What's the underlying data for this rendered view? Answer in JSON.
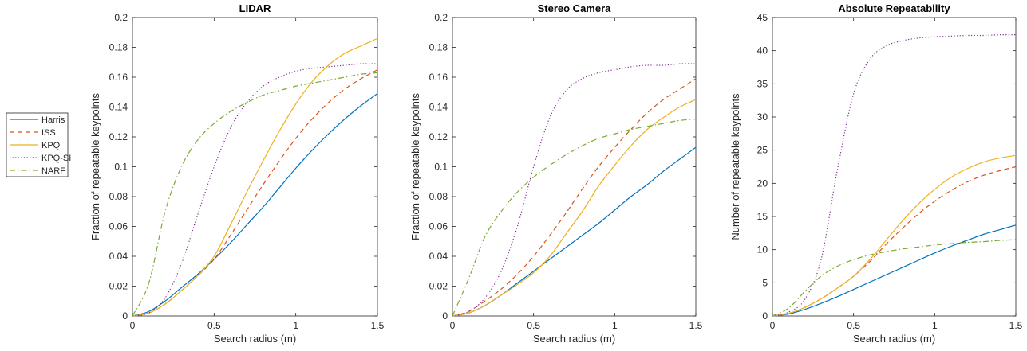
{
  "legend": {
    "placement": "left",
    "entries": [
      {
        "name": "Harris",
        "color": "#0072BD",
        "dash": "solid"
      },
      {
        "name": "ISS",
        "color": "#D95319",
        "dash": "dashed"
      },
      {
        "name": "KPQ",
        "color": "#EDB120",
        "dash": "solid"
      },
      {
        "name": "KPQ-SI",
        "color": "#7E2F8E",
        "dash": "dotted"
      },
      {
        "name": "NARF",
        "color": "#77AC30",
        "dash": "dashdot"
      }
    ]
  },
  "chart_data": [
    {
      "type": "line",
      "title": "LIDAR",
      "xlabel": "Search radius (m)",
      "ylabel": "Fraction of repeatable keypoints",
      "xlim": [
        0,
        1.5
      ],
      "ylim": [
        0,
        0.2
      ],
      "xticks": [
        "0",
        "0.5",
        "1",
        "1.5"
      ],
      "yticks": [
        "0",
        "0.02",
        "0.04",
        "0.06",
        "0.08",
        "0.1",
        "0.12",
        "0.14",
        "0.16",
        "0.18",
        "0.2"
      ],
      "grid": false,
      "x": [
        0,
        0.1,
        0.2,
        0.3,
        0.4,
        0.5,
        0.6,
        0.7,
        0.8,
        0.9,
        1.0,
        1.1,
        1.2,
        1.3,
        1.4,
        1.5
      ],
      "series": [
        {
          "name": "Harris",
          "values": [
            0,
            0.003,
            0.01,
            0.019,
            0.028,
            0.038,
            0.049,
            0.061,
            0.073,
            0.086,
            0.099,
            0.111,
            0.122,
            0.132,
            0.141,
            0.149
          ]
        },
        {
          "name": "ISS",
          "values": [
            0,
            0.002,
            0.008,
            0.017,
            0.027,
            0.038,
            0.054,
            0.071,
            0.088,
            0.104,
            0.119,
            0.132,
            0.143,
            0.152,
            0.159,
            0.165
          ]
        },
        {
          "name": "KPQ",
          "values": [
            0,
            0.002,
            0.008,
            0.017,
            0.027,
            0.04,
            0.061,
            0.083,
            0.104,
            0.124,
            0.142,
            0.157,
            0.168,
            0.176,
            0.181,
            0.186
          ]
        },
        {
          "name": "KPQ-SI",
          "values": [
            0,
            0.002,
            0.012,
            0.035,
            0.068,
            0.1,
            0.126,
            0.143,
            0.154,
            0.16,
            0.164,
            0.166,
            0.167,
            0.168,
            0.169,
            0.169
          ]
        },
        {
          "name": "NARF",
          "values": [
            0,
            0.022,
            0.07,
            0.1,
            0.118,
            0.129,
            0.137,
            0.143,
            0.148,
            0.151,
            0.154,
            0.156,
            0.158,
            0.16,
            0.162,
            0.163
          ]
        }
      ]
    },
    {
      "type": "line",
      "title": "Stereo Camera",
      "xlabel": "Search radius (m)",
      "ylabel": "Fraction of repeatable keypoints",
      "xlim": [
        0,
        1.5
      ],
      "ylim": [
        0,
        0.2
      ],
      "xticks": [
        "0",
        "0.5",
        "1",
        "1.5"
      ],
      "yticks": [
        "0",
        "0.02",
        "0.04",
        "0.06",
        "0.08",
        "0.1",
        "0.12",
        "0.14",
        "0.16",
        "0.18",
        "0.2"
      ],
      "grid": false,
      "x": [
        0,
        0.1,
        0.2,
        0.3,
        0.4,
        0.5,
        0.6,
        0.7,
        0.8,
        0.9,
        1.0,
        1.1,
        1.2,
        1.3,
        1.4,
        1.5
      ],
      "series": [
        {
          "name": "Harris",
          "values": [
            0,
            0.002,
            0.007,
            0.014,
            0.022,
            0.03,
            0.038,
            0.046,
            0.054,
            0.062,
            0.071,
            0.08,
            0.088,
            0.097,
            0.105,
            0.113
          ]
        },
        {
          "name": "ISS",
          "values": [
            0,
            0.003,
            0.01,
            0.018,
            0.028,
            0.04,
            0.054,
            0.069,
            0.085,
            0.1,
            0.113,
            0.125,
            0.136,
            0.145,
            0.152,
            0.159
          ]
        },
        {
          "name": "KPQ",
          "values": [
            0,
            0.002,
            0.007,
            0.014,
            0.021,
            0.029,
            0.04,
            0.055,
            0.07,
            0.087,
            0.101,
            0.114,
            0.125,
            0.133,
            0.14,
            0.145
          ]
        },
        {
          "name": "KPQ-SI",
          "values": [
            0,
            0.003,
            0.012,
            0.03,
            0.06,
            0.1,
            0.133,
            0.151,
            0.159,
            0.163,
            0.165,
            0.167,
            0.168,
            0.168,
            0.169,
            0.169
          ]
        },
        {
          "name": "NARF",
          "values": [
            0,
            0.025,
            0.053,
            0.07,
            0.083,
            0.093,
            0.101,
            0.108,
            0.114,
            0.119,
            0.122,
            0.125,
            0.127,
            0.129,
            0.131,
            0.132
          ]
        }
      ]
    },
    {
      "type": "line",
      "title": "Absolute Repeatability",
      "xlabel": "Search radius (m)",
      "ylabel": "Number of repeatable keypoints",
      "xlim": [
        0,
        1.5
      ],
      "ylim": [
        0,
        45
      ],
      "xticks": [
        "0",
        "0.5",
        "1",
        "1.5"
      ],
      "yticks": [
        "0",
        "5",
        "10",
        "15",
        "20",
        "25",
        "30",
        "35",
        "40",
        "45"
      ],
      "grid": false,
      "x": [
        0,
        0.1,
        0.2,
        0.3,
        0.4,
        0.5,
        0.6,
        0.7,
        0.8,
        0.9,
        1.0,
        1.1,
        1.2,
        1.3,
        1.4,
        1.5
      ],
      "series": [
        {
          "name": "Harris",
          "values": [
            0,
            0.3,
            1.0,
            1.9,
            2.9,
            4.0,
            5.1,
            6.2,
            7.3,
            8.4,
            9.5,
            10.5,
            11.4,
            12.3,
            13.0,
            13.7
          ]
        },
        {
          "name": "ISS",
          "values": [
            0,
            0.4,
            1.3,
            2.6,
            4.2,
            6.0,
            8.2,
            10.8,
            13.2,
            15.4,
            17.3,
            18.9,
            20.2,
            21.2,
            21.9,
            22.5
          ]
        },
        {
          "name": "KPQ",
          "values": [
            0,
            0.4,
            1.3,
            2.6,
            4.2,
            6.0,
            8.5,
            11.4,
            14.3,
            16.9,
            19.1,
            20.9,
            22.2,
            23.2,
            23.8,
            24.2
          ]
        },
        {
          "name": "KPQ-SI",
          "values": [
            0,
            0.6,
            2.5,
            8.5,
            22.0,
            33.5,
            38.7,
            40.7,
            41.5,
            41.9,
            42.1,
            42.2,
            42.3,
            42.3,
            42.4,
            42.4
          ]
        },
        {
          "name": "NARF",
          "values": [
            0,
            1.2,
            3.7,
            6.0,
            7.5,
            8.5,
            9.2,
            9.7,
            10.1,
            10.4,
            10.7,
            10.9,
            11.1,
            11.2,
            11.4,
            11.5
          ]
        }
      ]
    }
  ]
}
